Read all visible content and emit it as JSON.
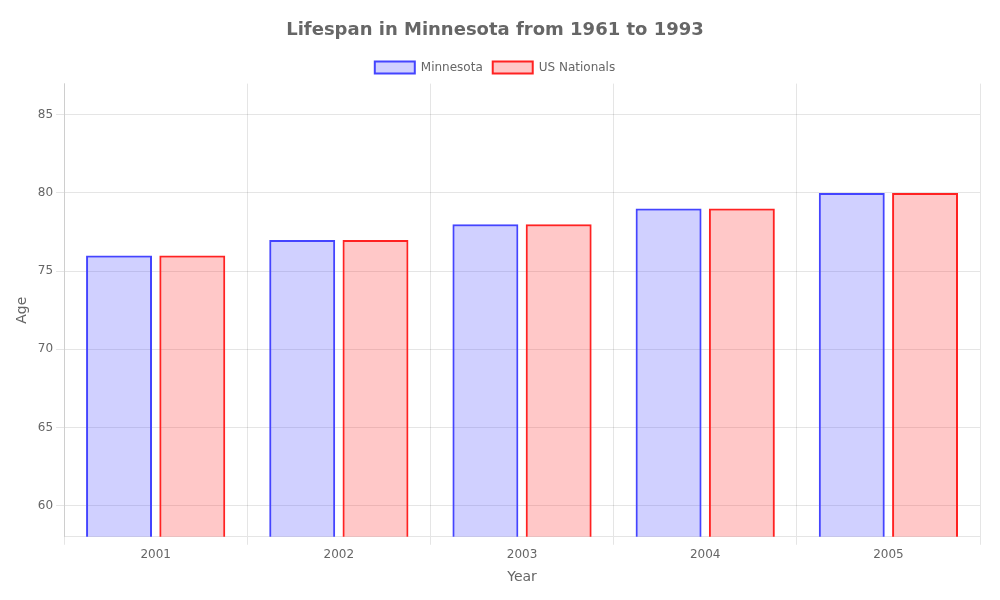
{
  "chart_data": {
    "type": "bar",
    "title": "Lifespan in Minnesota from 1961 to 1993",
    "x_label": "Year",
    "y_label": "Age",
    "categories": [
      "2001",
      "2002",
      "2003",
      "2004",
      "2005"
    ],
    "series": [
      {
        "name": "Minnesota",
        "color": "#4444FF",
        "values": [
          76,
          77,
          78,
          79,
          80
        ]
      },
      {
        "name": "US Nationals",
        "color": "#FF2222",
        "values": [
          76,
          77,
          78,
          79,
          80
        ]
      }
    ],
    "ylim": [
      58,
      87
    ],
    "yticks": [
      60,
      65,
      70,
      75,
      80,
      85
    ],
    "grid": true,
    "legend": "top"
  }
}
